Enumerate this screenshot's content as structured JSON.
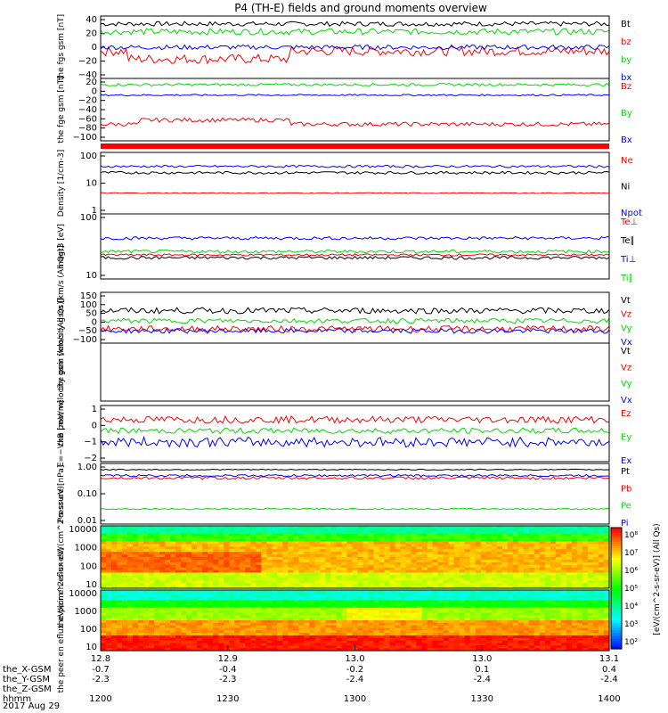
{
  "title": "P4 (TH-E) fields and ground moments overview",
  "date": "2017 Aug 29",
  "colors": {
    "black": "#000000",
    "red": "#ff0000",
    "green": "#00dd00",
    "blue": "#0000ff"
  },
  "xaxis": {
    "ticks": [
      "12.8",
      "12.9",
      "13.0",
      "13.0",
      "13.1"
    ],
    "rows": [
      {
        "label": "the_X-GSM",
        "values": [
          "-0.7",
          "-0.4",
          "-0.2",
          "0.1",
          "0.4"
        ]
      },
      {
        "label": "the_Y-GSM",
        "values": [
          "-2.3",
          "-2.3",
          "-2.4",
          "-2.4",
          "-2.4"
        ]
      },
      {
        "label": "the_Z-GSM",
        "values": [
          "",
          "",
          "",
          "",
          ""
        ]
      },
      {
        "label": "hhmm",
        "values": [
          "1200",
          "1230",
          "1300",
          "1330",
          "1400"
        ]
      }
    ]
  },
  "chart_data": [
    {
      "id": "fgs",
      "type": "line",
      "ylabel": "the fgs gsm [nT]",
      "ylim": [
        -40,
        40
      ],
      "yticks": [
        "40",
        "20",
        "0",
        "−20",
        "−40"
      ],
      "series": [
        {
          "name": "Bt",
          "color": "#000000",
          "base": 30,
          "noise": 3
        },
        {
          "name": "bz",
          "color": "#ff0000",
          "base": -5,
          "noise": 6
        },
        {
          "name": "by",
          "color": "#00dd00",
          "base": 20,
          "noise": 4
        },
        {
          "name": "bx",
          "color": "#0000ff",
          "base": 0,
          "noise": 3
        }
      ]
    },
    {
      "id": "fge",
      "type": "line",
      "ylabel": "the fge gsm [nT]",
      "ylim": [
        -110,
        40
      ],
      "yticks": [
        "20",
        "0",
        "−20",
        "−40",
        "−60",
        "−80",
        "−100"
      ],
      "series": [
        {
          "name": "Bz",
          "color": "#ff0000",
          "base": -70,
          "noise": 5
        },
        {
          "name": "By",
          "color": "#00dd00",
          "base": 25,
          "noise": 3
        },
        {
          "name": "Bx",
          "color": "#0000ff",
          "base": 0,
          "noise": 2
        }
      ]
    },
    {
      "id": "density",
      "type": "line",
      "ylabel": "Density [1/cm-3]",
      "ylim": [
        1,
        200
      ],
      "log": true,
      "yticks": [
        "100",
        "10",
        "1"
      ],
      "series": [
        {
          "name": "Ne",
          "color": "#ff0000",
          "base": 6,
          "noise": 0.2
        },
        {
          "name": "Ni",
          "color": "#000000",
          "base": 35,
          "noise": 4
        },
        {
          "name": "Npot",
          "color": "#0000ff",
          "base": 60,
          "noise": 6
        }
      ]
    },
    {
      "id": "temp",
      "type": "line",
      "ylabel": "magt3 [eV]",
      "ylim": [
        10,
        1000
      ],
      "log": true,
      "yticks": [
        "100",
        "10"
      ],
      "series": [
        {
          "name": "Te⊥",
          "color": "#ff0000",
          "base": 55,
          "noise": 4
        },
        {
          "name": "Te∥",
          "color": "#000000",
          "base": 45,
          "noise": 5
        },
        {
          "name": "Ti⊥",
          "color": "#0000ff",
          "base": 180,
          "noise": 20
        },
        {
          "name": "Ti∥",
          "color": "#00dd00",
          "base": 70,
          "noise": 8
        }
      ]
    },
    {
      "id": "vpeir",
      "type": "line",
      "ylabel": "the peir velocity gsm [km/s (All Qs)]",
      "ylim": [
        -100,
        150
      ],
      "yticks": [
        "150",
        "100",
        "50",
        "0",
        "−50",
        "−100"
      ],
      "series": [
        {
          "name": "Vt",
          "color": "#000000",
          "base": 60,
          "noise": 15
        },
        {
          "name": "Vz",
          "color": "#ff0000",
          "base": -30,
          "noise": 15
        },
        {
          "name": "Vy",
          "color": "#00dd00",
          "base": 10,
          "noise": 12
        },
        {
          "name": "Vx",
          "color": "#0000ff",
          "base": -40,
          "noise": 12
        }
      ]
    },
    {
      "id": "vpeer",
      "type": "line",
      "ylabel": "the peer velocity gsm [km/s (All Qs)]",
      "ylim": [
        -100,
        100
      ],
      "yticks": [],
      "series": [
        {
          "name": "Vt",
          "color": "#000000"
        },
        {
          "name": "Vz",
          "color": "#ff0000"
        },
        {
          "name": "Vy",
          "color": "#00dd00"
        },
        {
          "name": "Vx",
          "color": "#0000ff"
        }
      ]
    },
    {
      "id": "efield",
      "type": "line",
      "ylabel": "E=−VxB [mV/m]",
      "ylim": [
        -2.2,
        1.8
      ],
      "yticks": [
        "1",
        "0",
        "−1",
        "−2"
      ],
      "series": [
        {
          "name": "Ez",
          "color": "#ff0000",
          "base": 0.8,
          "noise": 0.25
        },
        {
          "name": "Ey",
          "color": "#00dd00",
          "base": 0,
          "noise": 0.2
        },
        {
          "name": "Ex",
          "color": "#0000ff",
          "base": -0.8,
          "noise": 0.35
        }
      ]
    },
    {
      "id": "pressure",
      "type": "line",
      "ylabel": "Pressure [nPa]",
      "ylim": [
        0.01,
        1.5
      ],
      "log": true,
      "yticks": [
        "1.00",
        "0.10",
        "0.01"
      ],
      "series": [
        {
          "name": "Pt",
          "color": "#000000",
          "base": 0.9,
          "noise": 0.04
        },
        {
          "name": "Pb",
          "color": "#ff0000",
          "base": 0.45,
          "noise": 0.05
        },
        {
          "name": "Pe",
          "color": "#00dd00",
          "base": 0.035,
          "noise": 0.002
        },
        {
          "name": "Pi",
          "color": "#0000ff",
          "base": 0.55,
          "noise": 0.05
        }
      ]
    },
    {
      "id": "peir_spec",
      "type": "heatmap",
      "ylabel": "the peir en eflux eV/(cm^2-s-sr-eV)",
      "yticks": [
        "10000",
        "1000",
        "100",
        "10"
      ]
    },
    {
      "id": "peer_spec",
      "type": "heatmap",
      "ylabel": "the peer en eflux eV/(cm^2-s-sr-eV)",
      "yticks": [
        "10000",
        "1000",
        "100",
        "10"
      ]
    }
  ],
  "colorbar": {
    "label": "[eV/(cm^2-s-sr-eV)] (All Qs)",
    "ticks": [
      "10⁸",
      "10⁷",
      "10⁶",
      "10⁵",
      "10⁴",
      "10³",
      "10²"
    ]
  }
}
